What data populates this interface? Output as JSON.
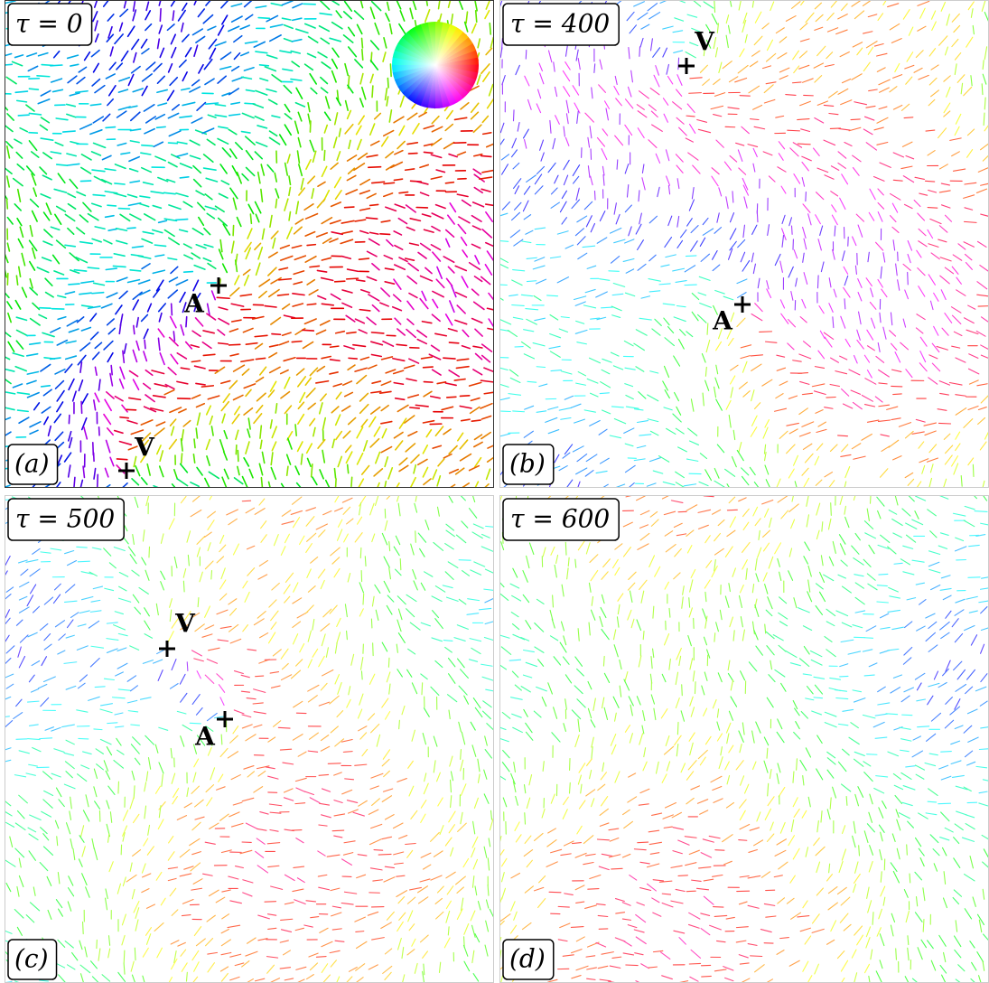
{
  "panels": [
    {
      "tau_label": "τ = 0",
      "panel_label": "(a)",
      "markers": [
        {
          "label": "A"
        },
        {
          "label": "V"
        }
      ]
    },
    {
      "tau_label": "τ = 400",
      "panel_label": "(b)",
      "markers": [
        {
          "label": "V"
        },
        {
          "label": "A"
        }
      ]
    },
    {
      "tau_label": "τ = 500",
      "panel_label": "(c)",
      "markers": [
        {
          "label": "V"
        },
        {
          "label": "A"
        }
      ]
    },
    {
      "tau_label": "τ = 600",
      "panel_label": "(d)",
      "markers": []
    }
  ]
}
